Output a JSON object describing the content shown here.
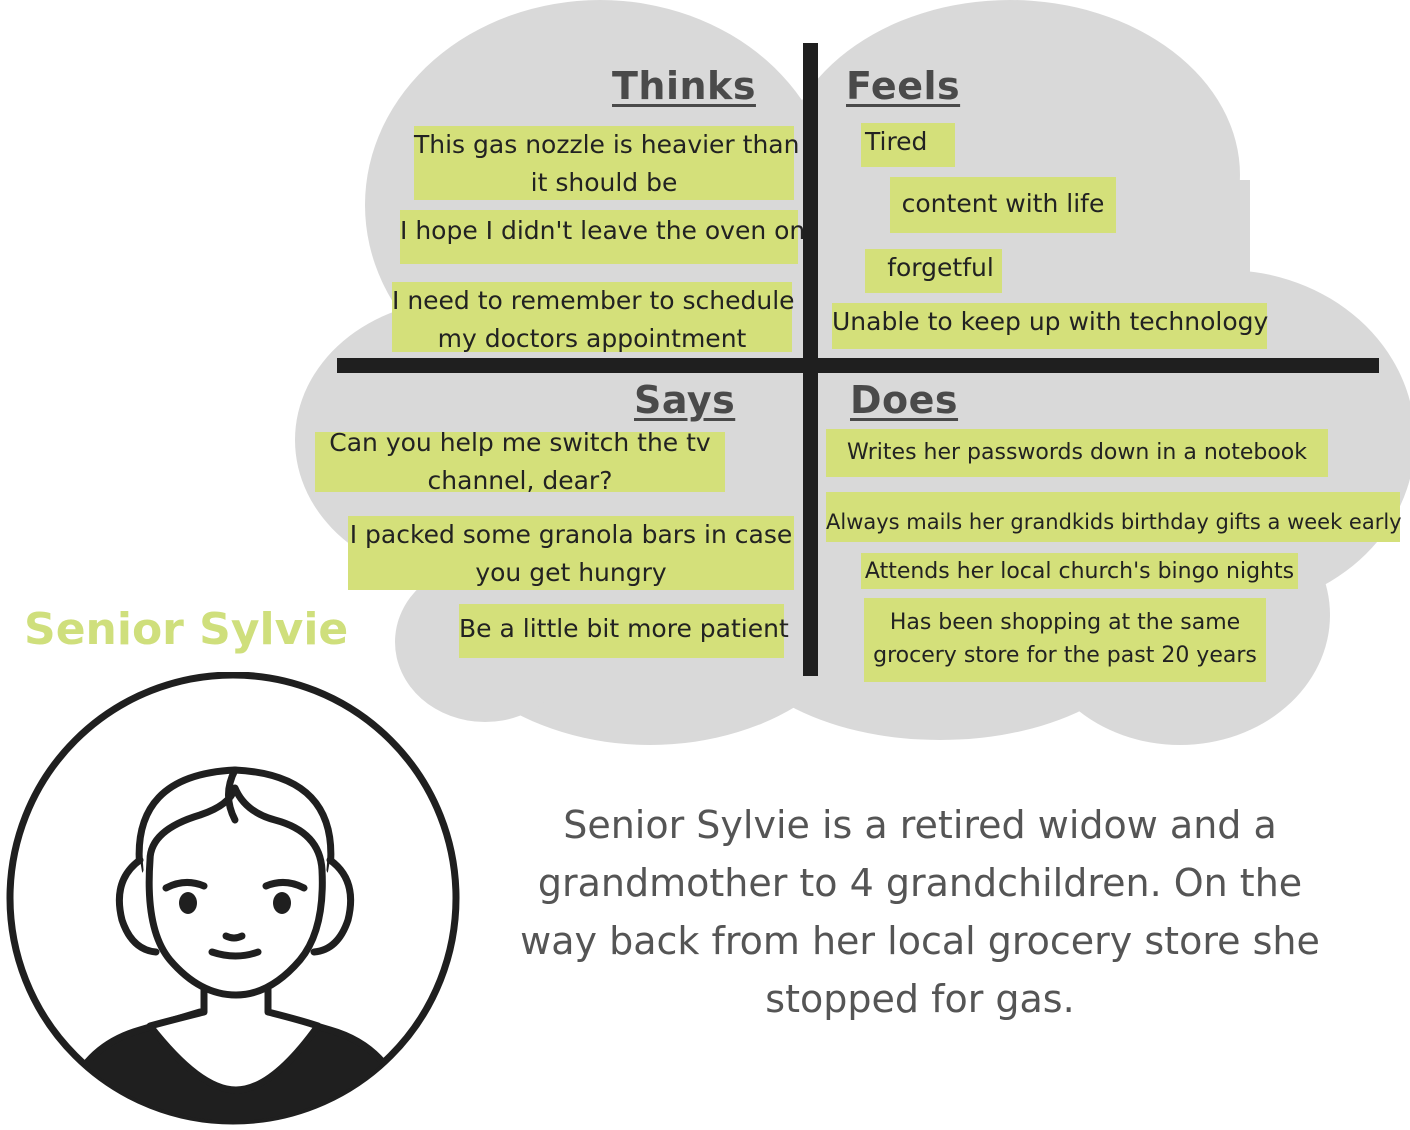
{
  "persona": {
    "name": "Senior Sylvie",
    "description": "Senior Sylvie is a retired widow and a grandmother to 4 grandchildren. On the way back from her local grocery store she stopped for gas."
  },
  "quadrants": {
    "thinks": {
      "title": "Thinks",
      "notes": [
        [
          "This gas nozzle is heavier than",
          "it should be"
        ],
        [
          "I hope I didn't leave the oven on"
        ],
        [
          "I need to remember to schedule",
          "my doctors appointment"
        ]
      ]
    },
    "feels": {
      "title": "Feels",
      "notes": [
        [
          "Tired"
        ],
        [
          "content with life"
        ],
        [
          "forgetful"
        ],
        [
          "Unable to keep up with technology"
        ]
      ]
    },
    "says": {
      "title": "Says",
      "notes": [
        [
          "Can you help me switch the tv",
          "channel, dear?"
        ],
        [
          "I packed some granola bars in case",
          "you get hungry"
        ],
        [
          "Be a little bit more patient"
        ]
      ]
    },
    "does": {
      "title": "Does",
      "notes": [
        [
          "Writes her passwords down in a notebook"
        ],
        [
          "Always mails her grandkids birthday gifts a week early"
        ],
        [
          "Attends her local church's bingo nights"
        ],
        [
          "Has been shopping at the same",
          "grocery store for the past 20 years"
        ]
      ]
    }
  },
  "colors": {
    "note": "#d4e07a",
    "cloud": "#d9d9d9",
    "accent": "#cfdf7c",
    "text": "#555555",
    "divider": "#1f1f1f"
  }
}
